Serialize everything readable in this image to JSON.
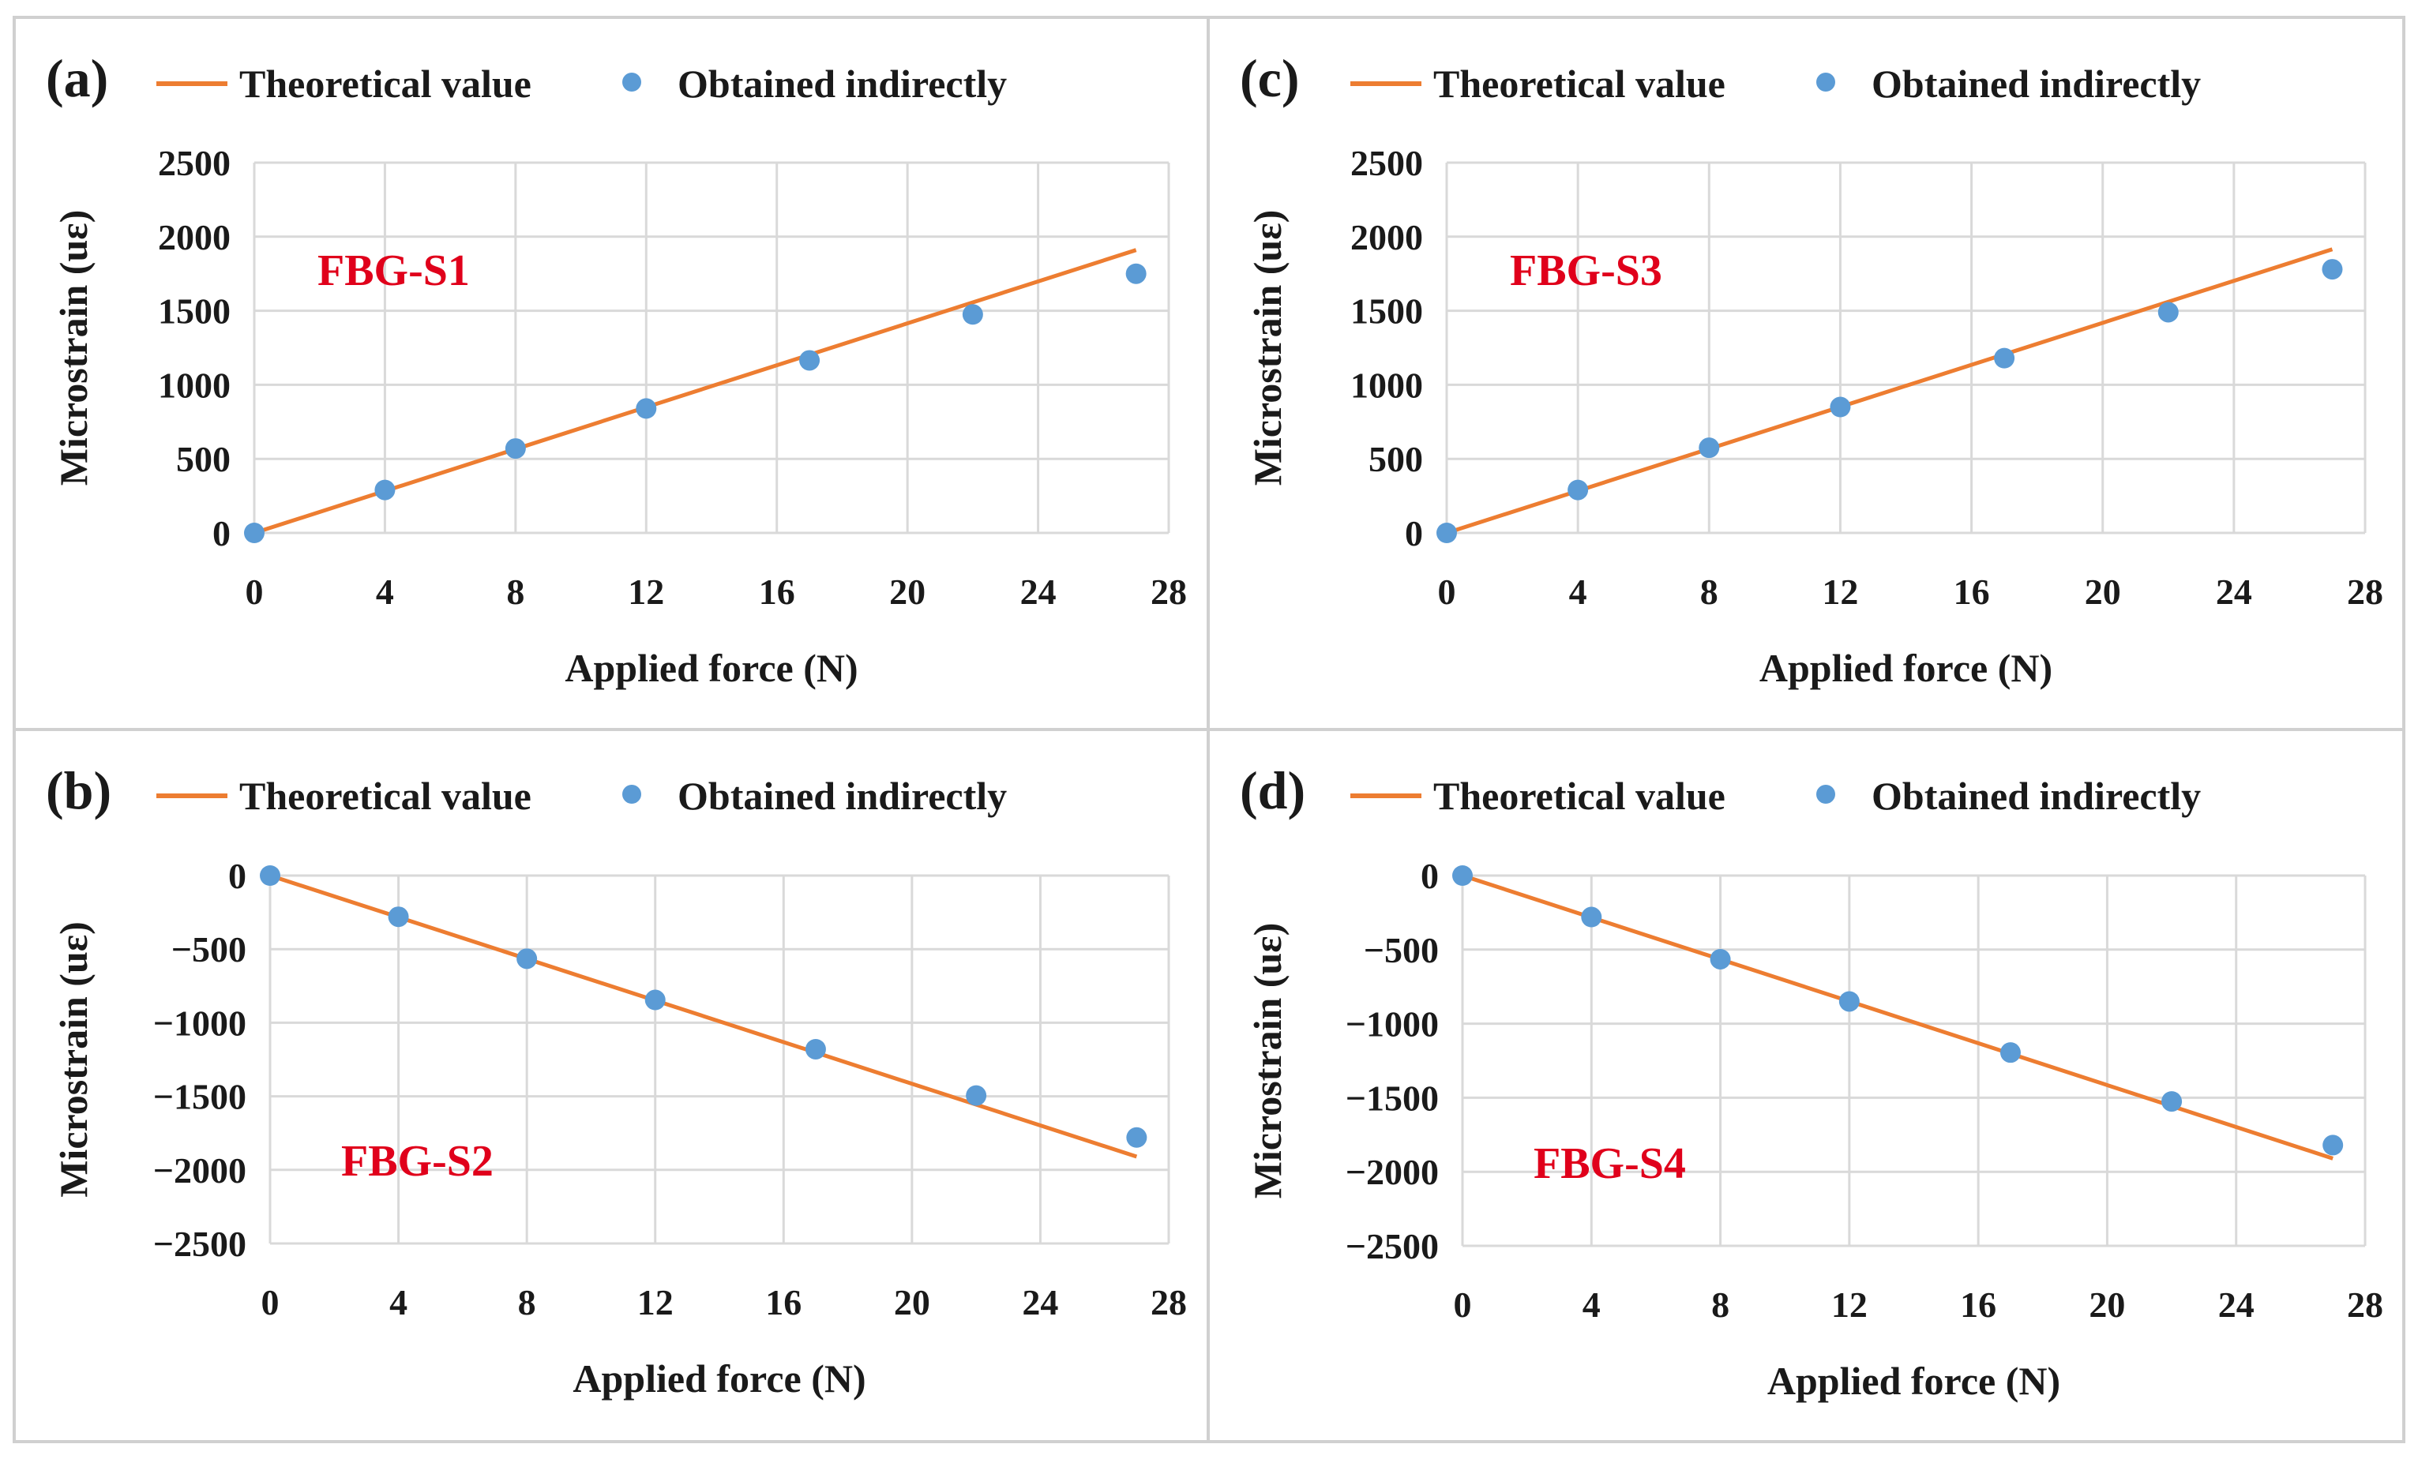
{
  "colors": {
    "line": "#ED7D31",
    "marker": "#5B9BD5",
    "grid": "#D9D9D9",
    "sensor_label": "#E0001B",
    "text": "#1a1a1a",
    "panel_border": "#D0D0D0"
  },
  "legend": {
    "line_label": "Theoretical value",
    "marker_label": "Obtained indirectly"
  },
  "chart_data": [
    {
      "panel": "(a)",
      "type": "line+scatter",
      "sensor_label": "FBG-S1",
      "xlabel": "Applied force (N)",
      "ylabel": "Microstrain (uε)",
      "xlim": [
        0,
        28
      ],
      "ylim": [
        0,
        2500
      ],
      "xticks": [
        0,
        4,
        8,
        12,
        16,
        20,
        24,
        28
      ],
      "yticks": [
        0,
        500,
        1000,
        1500,
        2000,
        2500
      ],
      "ytick_labels": [
        "0",
        "500",
        "1000",
        "1500",
        "2000",
        "2500"
      ],
      "series": [
        {
          "name": "Theoretical value",
          "kind": "line",
          "x": [
            0,
            27
          ],
          "y": [
            0,
            1910
          ]
        },
        {
          "name": "Obtained indirectly",
          "kind": "scatter",
          "x": [
            0,
            4,
            8,
            12,
            17,
            22,
            27
          ],
          "y": [
            0,
            290,
            570,
            840,
            1165,
            1475,
            1750
          ]
        }
      ]
    },
    {
      "panel": "(b)",
      "type": "line+scatter",
      "sensor_label": "FBG-S2",
      "xlabel": "Applied force (N)",
      "ylabel": "Microstrain (uε)",
      "xlim": [
        0,
        28
      ],
      "ylim": [
        -2500,
        0
      ],
      "xticks": [
        0,
        4,
        8,
        12,
        16,
        20,
        24,
        28
      ],
      "yticks": [
        0,
        -500,
        -1000,
        -1500,
        -2000,
        -2500
      ],
      "ytick_labels": [
        "0",
        "−500",
        "−1000",
        "−1500",
        "−2000",
        "−2500"
      ],
      "series": [
        {
          "name": "Theoretical value",
          "kind": "line",
          "x": [
            0,
            27
          ],
          "y": [
            0,
            -1910
          ]
        },
        {
          "name": "Obtained indirectly",
          "kind": "scatter",
          "x": [
            0,
            4,
            8,
            12,
            17,
            22,
            27
          ],
          "y": [
            0,
            -280,
            -565,
            -845,
            -1180,
            -1495,
            -1780
          ]
        }
      ]
    },
    {
      "panel": "(c)",
      "type": "line+scatter",
      "sensor_label": "FBG-S3",
      "xlabel": "Applied force (N)",
      "ylabel": "Microstrain (uε)",
      "xlim": [
        0,
        28
      ],
      "ylim": [
        0,
        2500
      ],
      "xticks": [
        0,
        4,
        8,
        12,
        16,
        20,
        24,
        28
      ],
      "yticks": [
        0,
        500,
        1000,
        1500,
        2000,
        2500
      ],
      "ytick_labels": [
        "0",
        "500",
        "1000",
        "1500",
        "2000",
        "2500"
      ],
      "series": [
        {
          "name": "Theoretical value",
          "kind": "line",
          "x": [
            0,
            27
          ],
          "y": [
            0,
            1915
          ]
        },
        {
          "name": "Obtained indirectly",
          "kind": "scatter",
          "x": [
            0,
            4,
            8,
            12,
            17,
            22,
            27
          ],
          "y": [
            0,
            290,
            575,
            850,
            1180,
            1490,
            1780
          ]
        }
      ]
    },
    {
      "panel": "(d)",
      "type": "line+scatter",
      "sensor_label": "FBG-S4",
      "xlabel": "Applied force (N)",
      "ylabel": "Microstrain (uε)",
      "xlim": [
        0,
        28
      ],
      "ylim": [
        -2500,
        0
      ],
      "xticks": [
        0,
        4,
        8,
        12,
        16,
        20,
        24,
        28
      ],
      "yticks": [
        0,
        -500,
        -1000,
        -1500,
        -2000,
        -2500
      ],
      "ytick_labels": [
        "0",
        "−500",
        "−1000",
        "−1500",
        "−2000",
        "−2500"
      ],
      "series": [
        {
          "name": "Theoretical value",
          "kind": "line",
          "x": [
            0,
            27
          ],
          "y": [
            0,
            -1910
          ]
        },
        {
          "name": "Obtained indirectly",
          "kind": "scatter",
          "x": [
            0,
            4,
            8,
            12,
            17,
            22,
            27
          ],
          "y": [
            0,
            -280,
            -565,
            -850,
            -1195,
            -1525,
            -1820
          ]
        }
      ]
    }
  ]
}
